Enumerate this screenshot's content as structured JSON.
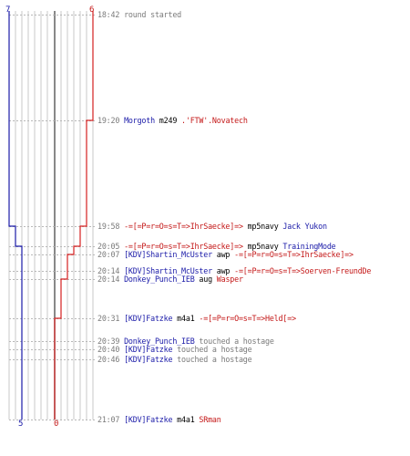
{
  "colors": {
    "team_a": "#1a1aa8",
    "team_b": "#d42020",
    "grid": "#c8c8c8",
    "center": "#606060",
    "dash": "#b8b8b8",
    "time": "#7a7a7a"
  },
  "counts": {
    "team_a_start": "7",
    "team_b_start": "6",
    "team_a_end": "5",
    "team_b_end": "0"
  },
  "events": [
    {
      "time": "18:42",
      "parts": [
        {
          "text": "round started",
          "color": "gray"
        }
      ]
    },
    {
      "time": "19:20",
      "parts": [
        {
          "text": "Morgoth",
          "color": "blue"
        },
        {
          "text": " m249 ",
          "color": "black"
        },
        {
          "text": ".'FTW'.Novatech",
          "color": "red"
        }
      ]
    },
    {
      "time": "19:58",
      "parts": [
        {
          "text": "-=[=P=r=O=s=T=>IhrSaecke]=>",
          "color": "red"
        },
        {
          "text": " mp5navy ",
          "color": "black"
        },
        {
          "text": "Jack Yukon",
          "color": "blue"
        }
      ]
    },
    {
      "time": "20:05",
      "parts": [
        {
          "text": "-=[=P=r=O=s=T=>IhrSaecke]=>",
          "color": "red"
        },
        {
          "text": " mp5navy ",
          "color": "black"
        },
        {
          "text": "TrainingMode",
          "color": "blue"
        }
      ]
    },
    {
      "time": "20:07",
      "parts": [
        {
          "text": "[KDV]Shartin_McUster",
          "color": "blue"
        },
        {
          "text": " awp ",
          "color": "black"
        },
        {
          "text": "-=[=P=r=O=s=T=>IhrSaecke]=>",
          "color": "red"
        }
      ]
    },
    {
      "time": "20:14",
      "parts": [
        {
          "text": "[KDV]Shartin_McUster",
          "color": "blue"
        },
        {
          "text": " awp ",
          "color": "black"
        },
        {
          "text": "-=[=P=r=O=s=T=>Soerven-FreundDe",
          "color": "red"
        }
      ]
    },
    {
      "time": "20:14",
      "parts": [
        {
          "text": "Donkey_Punch_IEB",
          "color": "blue"
        },
        {
          "text": " aug ",
          "color": "black"
        },
        {
          "text": "Wasper",
          "color": "red"
        }
      ]
    },
    {
      "time": "20:31",
      "parts": [
        {
          "text": "[KDV]Fatzke",
          "color": "blue"
        },
        {
          "text": " m4a1 ",
          "color": "black"
        },
        {
          "text": "-=[=P=r=O=s=T=>Held[=>",
          "color": "red"
        }
      ]
    },
    {
      "time": "20:39",
      "parts": [
        {
          "text": "Donkey_Punch_IEB",
          "color": "blue"
        },
        {
          "text": " touched a hostage",
          "color": "gray"
        }
      ]
    },
    {
      "time": "20:40",
      "parts": [
        {
          "text": "[KDV]Fatzke",
          "color": "blue"
        },
        {
          "text": " touched a hostage",
          "color": "gray"
        }
      ]
    },
    {
      "time": "20:46",
      "parts": [
        {
          "text": "[KDV]Fatzke",
          "color": "blue"
        },
        {
          "text": " touched a hostage",
          "color": "gray"
        }
      ]
    },
    {
      "time": "21:07",
      "parts": [
        {
          "text": "[KDV]Fatzke",
          "color": "blue"
        },
        {
          "text": " m4a1 ",
          "color": "black"
        },
        {
          "text": "SRman",
          "color": "red"
        }
      ]
    }
  ]
}
